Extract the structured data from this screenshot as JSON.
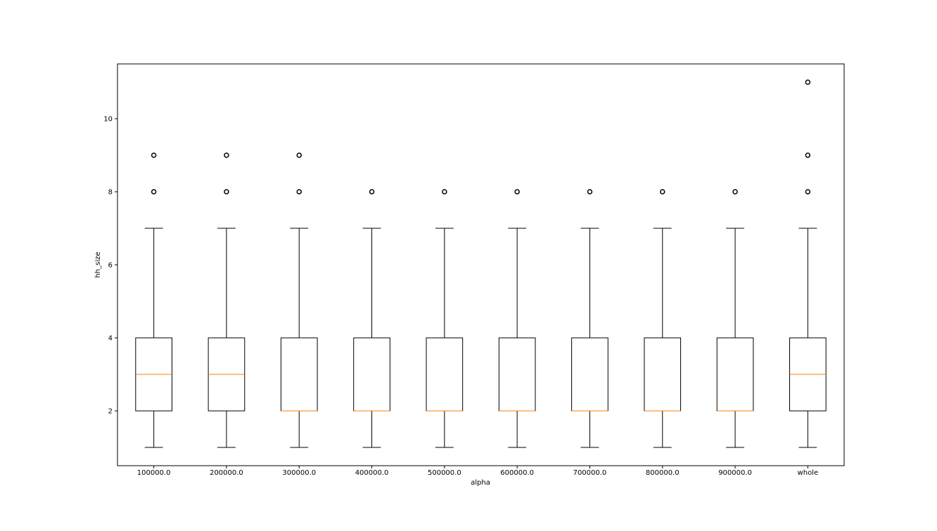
{
  "chart_data": {
    "type": "box",
    "title": "",
    "xlabel": "alpha",
    "ylabel": "hh_size",
    "ylim": [
      0.5,
      11.5
    ],
    "yticks": [
      2,
      4,
      6,
      8,
      10
    ],
    "grid": false,
    "categories": [
      "100000.0",
      "200000.0",
      "300000.0",
      "400000.0",
      "500000.0",
      "600000.0",
      "700000.0",
      "800000.0",
      "900000.0",
      "whole"
    ],
    "boxes": [
      {
        "whisker_low": 1,
        "q1": 2,
        "median": 3,
        "q3": 4,
        "whisker_high": 7,
        "outliers": [
          8,
          9
        ]
      },
      {
        "whisker_low": 1,
        "q1": 2,
        "median": 3,
        "q3": 4,
        "whisker_high": 7,
        "outliers": [
          8,
          9
        ]
      },
      {
        "whisker_low": 1,
        "q1": 2,
        "median": 2,
        "q3": 4,
        "whisker_high": 7,
        "outliers": [
          8,
          9
        ]
      },
      {
        "whisker_low": 1,
        "q1": 2,
        "median": 2,
        "q3": 4,
        "whisker_high": 7,
        "outliers": [
          8
        ]
      },
      {
        "whisker_low": 1,
        "q1": 2,
        "median": 2,
        "q3": 4,
        "whisker_high": 7,
        "outliers": [
          8
        ]
      },
      {
        "whisker_low": 1,
        "q1": 2,
        "median": 2,
        "q3": 4,
        "whisker_high": 7,
        "outliers": [
          8
        ]
      },
      {
        "whisker_low": 1,
        "q1": 2,
        "median": 2,
        "q3": 4,
        "whisker_high": 7,
        "outliers": [
          8
        ]
      },
      {
        "whisker_low": 1,
        "q1": 2,
        "median": 2,
        "q3": 4,
        "whisker_high": 7,
        "outliers": [
          8
        ]
      },
      {
        "whisker_low": 1,
        "q1": 2,
        "median": 2,
        "q3": 4,
        "whisker_high": 7,
        "outliers": [
          8
        ]
      },
      {
        "whisker_low": 1,
        "q1": 2,
        "median": 3,
        "q3": 4,
        "whisker_high": 7,
        "outliers": [
          8,
          9,
          11
        ]
      }
    ],
    "colors": {
      "box": "#000000",
      "median": "#ff7f0e",
      "outlier": "#000000"
    }
  }
}
